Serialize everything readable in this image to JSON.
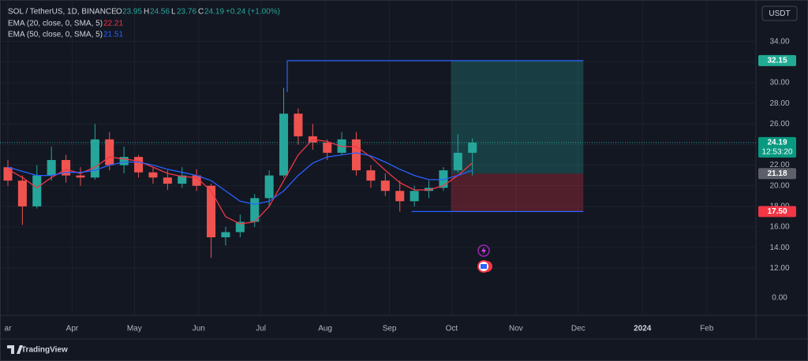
{
  "chart_data": {
    "type": "candlestick",
    "title": "SOL / TetherUS, 1D, BINANCE",
    "legend_ohlc": {
      "open_label": "O",
      "open": 23.95,
      "high_label": "H",
      "high": 24.56,
      "low_label": "L",
      "low": 23.76,
      "close_label": "C",
      "close": 24.19,
      "change": "+0.24 (+1.00%)"
    },
    "currency": "USDT",
    "countdown": "12:53:20",
    "branding": "TradingView",
    "annotations": [
      "0.00"
    ],
    "up_color": "#26a69a",
    "down_color": "#ef5350",
    "x": [
      0,
      7,
      14,
      21,
      28,
      35,
      42,
      49,
      56,
      63,
      70,
      77,
      84,
      91,
      98,
      105,
      112,
      119,
      126,
      133,
      140,
      147,
      154,
      161,
      168,
      175,
      182,
      189,
      196,
      203,
      210,
      217,
      224
    ],
    "open": [
      21.8,
      20.5,
      18.0,
      21.0,
      22.5,
      21.0,
      20.8,
      24.5,
      22.0,
      22.8,
      21.3,
      20.8,
      20.2,
      21.0,
      20.0,
      15.0,
      15.5,
      16.5,
      18.8,
      21.0,
      27.0,
      24.8,
      24.2,
      23.2,
      24.5,
      21.5,
      20.5,
      19.5,
      18.5,
      19.5,
      19.8,
      21.5,
      23.2
    ],
    "high": [
      22.5,
      21.0,
      22.0,
      23.8,
      23.0,
      21.8,
      26.0,
      25.2,
      23.8,
      23.0,
      21.8,
      21.5,
      21.8,
      21.6,
      20.2,
      16.0,
      17.2,
      19.2,
      21.5,
      29.5,
      27.5,
      26.0,
      24.5,
      25.2,
      25.2,
      22.0,
      21.2,
      20.5,
      20.0,
      20.5,
      21.8,
      25.0,
      24.6
    ],
    "low": [
      20.0,
      16.2,
      17.8,
      20.5,
      20.3,
      20.0,
      20.6,
      21.5,
      21.2,
      20.8,
      20.2,
      19.6,
      19.8,
      19.5,
      13.0,
      14.2,
      15.0,
      16.0,
      18.0,
      20.8,
      24.0,
      23.5,
      22.5,
      23.0,
      21.0,
      19.8,
      19.0,
      17.5,
      18.0,
      18.8,
      19.5,
      21.3,
      21.0
    ],
    "close": [
      20.5,
      18.0,
      21.0,
      22.5,
      21.0,
      20.8,
      24.5,
      22.0,
      22.8,
      21.3,
      20.8,
      20.2,
      21.0,
      20.0,
      15.0,
      15.5,
      16.5,
      18.8,
      21.0,
      27.0,
      24.8,
      24.2,
      23.2,
      24.5,
      21.5,
      20.5,
      19.5,
      18.5,
      19.5,
      19.8,
      21.5,
      23.2,
      24.19
    ],
    "series": [
      {
        "name": "EMA (20, close, 0, SMA, 5)",
        "color": "#f23645",
        "values": [
          21.6,
          20.8,
          19.8,
          20.8,
          21.6,
          21.2,
          21.8,
          22.8,
          22.6,
          22.4,
          21.8,
          21.2,
          20.9,
          20.8,
          19.5,
          17.0,
          16.3,
          16.5,
          18.0,
          20.5,
          23.0,
          24.5,
          24.3,
          23.8,
          23.8,
          22.8,
          21.5,
          20.3,
          19.6,
          19.6,
          20.0,
          21.0,
          22.21
        ]
      },
      {
        "name": "EMA (50, close, 0, SMA, 5)",
        "color": "#2962ff",
        "values": [
          21.8,
          21.4,
          21.0,
          21.0,
          21.3,
          21.3,
          21.5,
          22.0,
          22.3,
          22.3,
          22.0,
          21.6,
          21.3,
          21.0,
          20.5,
          19.5,
          18.5,
          18.2,
          18.5,
          19.5,
          21.0,
          22.2,
          22.8,
          23.0,
          23.2,
          22.9,
          22.3,
          21.6,
          21.0,
          20.6,
          20.6,
          21.0,
          21.51
        ]
      }
    ],
    "position": {
      "target": 32.15,
      "target_label": "32.15",
      "entry": 21.18,
      "entry_label": "21.18",
      "stop": 17.5,
      "stop_label": "17.50",
      "start": 213.7,
      "end": 277.5,
      "top_line_start": 134.7,
      "bottom_line_start": 194.7
    },
    "xlim": [
      -3.8,
      360.7
    ],
    "xticks": [
      {
        "value": 0,
        "label": "ar"
      },
      {
        "value": 31,
        "label": "Apr"
      },
      {
        "value": 61,
        "label": "May"
      },
      {
        "value": 92,
        "label": "Jun"
      },
      {
        "value": 122,
        "label": "Jul"
      },
      {
        "value": 153,
        "label": "Aug"
      },
      {
        "value": 184,
        "label": "Sep"
      },
      {
        "value": 214,
        "label": "Oct"
      },
      {
        "value": 245,
        "label": "Nov"
      },
      {
        "value": 275,
        "label": "Dec"
      },
      {
        "value": 306,
        "label": "2024"
      },
      {
        "value": 337,
        "label": "Feb"
      }
    ],
    "ylim": [
      7.43,
      38.03
    ],
    "yticks": [
      {
        "value": 12,
        "label": "12.00"
      },
      {
        "value": 14,
        "label": "14.00"
      },
      {
        "value": 16,
        "label": "16.00"
      },
      {
        "value": 18,
        "label": "18.00"
      },
      {
        "value": 20,
        "label": "20.00"
      },
      {
        "value": 22,
        "label": "22.00"
      },
      {
        "value": 24,
        "label": "24.00"
      },
      {
        "value": 26,
        "label": "26.00"
      },
      {
        "value": 28,
        "label": "28.00"
      },
      {
        "value": 30,
        "label": "30.00"
      },
      {
        "value": 32,
        "label": "32.00"
      },
      {
        "value": 34,
        "label": "34.00"
      }
    ],
    "grid": true
  }
}
